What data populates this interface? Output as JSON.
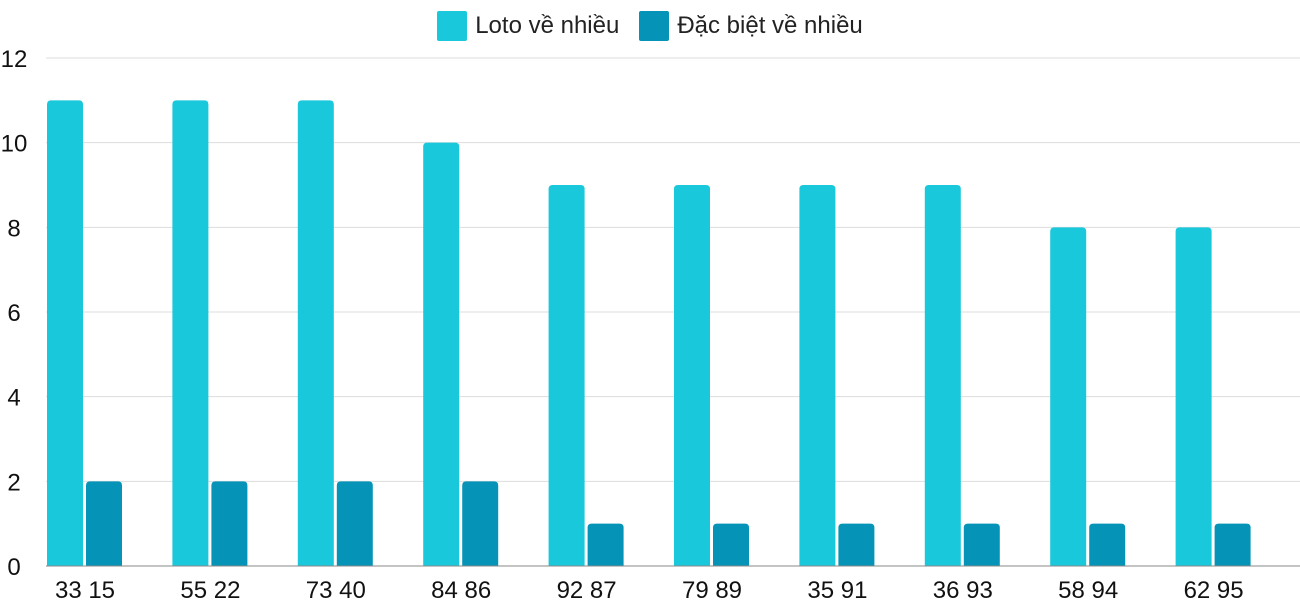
{
  "chart_data": {
    "type": "bar",
    "categories": [
      "33 15",
      "55 22",
      "73 40",
      "84 86",
      "92 87",
      "79 89",
      "35 91",
      "36 93",
      "58 94",
      "62 95"
    ],
    "series": [
      {
        "name": "Loto về nhiều",
        "color": "#1ac8dc",
        "values": [
          11,
          11,
          11,
          10,
          9,
          9,
          9,
          9,
          8,
          8
        ]
      },
      {
        "name": "Đặc biệt về nhiều",
        "color": "#0594b7",
        "values": [
          2,
          2,
          2,
          2,
          1,
          1,
          1,
          1,
          1,
          1
        ]
      }
    ],
    "ylim": [
      0,
      12
    ],
    "yticks": [
      0,
      2,
      4,
      6,
      8,
      10,
      12
    ],
    "grid": true,
    "legend_position": "top-center"
  }
}
